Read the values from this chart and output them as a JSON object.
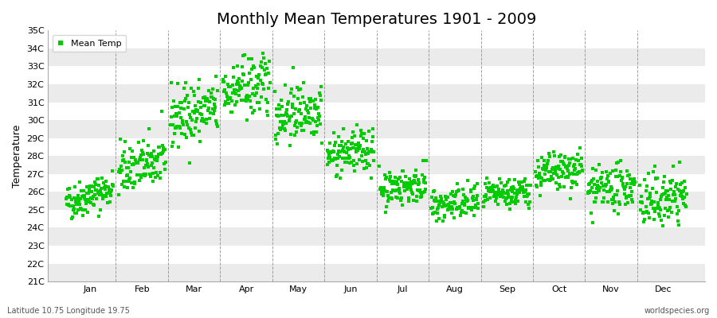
{
  "title": "Monthly Mean Temperatures 1901 - 2009",
  "ylabel": "Temperature",
  "ylim": [
    21,
    35
  ],
  "ytick_labels": [
    "21C",
    "22C",
    "23C",
    "24C",
    "25C",
    "26C",
    "27C",
    "28C",
    "29C",
    "30C",
    "31C",
    "32C",
    "33C",
    "34C",
    "35C"
  ],
  "ytick_values": [
    21,
    22,
    23,
    24,
    25,
    26,
    27,
    28,
    29,
    30,
    31,
    32,
    33,
    34,
    35
  ],
  "month_labels": [
    "Jan",
    "Feb",
    "Mar",
    "Apr",
    "May",
    "Jun",
    "Jul",
    "Aug",
    "Sep",
    "Oct",
    "Nov",
    "Dec"
  ],
  "dot_color": "#00CC00",
  "bg_color": "#FFFFFF",
  "stripe_color_odd": "#FFFFFF",
  "stripe_color_even": "#EBEBEB",
  "legend_label": "Mean Temp",
  "subtitle_left": "Latitude 10.75 Longitude 19.75",
  "subtitle_right": "worldspecies.org",
  "n_years": 109,
  "monthly_means": [
    25.8,
    27.5,
    30.4,
    31.8,
    30.5,
    28.2,
    26.3,
    25.3,
    25.9,
    27.1,
    26.2,
    25.6
  ],
  "monthly_stds": [
    0.5,
    0.7,
    0.85,
    0.85,
    0.8,
    0.6,
    0.5,
    0.5,
    0.4,
    0.55,
    0.6,
    0.75
  ],
  "monthly_trends": [
    0.008,
    0.006,
    0.005,
    0.004,
    0.004,
    0.004,
    0.003,
    0.003,
    0.003,
    0.004,
    0.004,
    0.005
  ],
  "seed": 42,
  "title_fontsize": 14,
  "axis_fontsize": 9,
  "tick_fontsize": 8,
  "dot_size": 5
}
